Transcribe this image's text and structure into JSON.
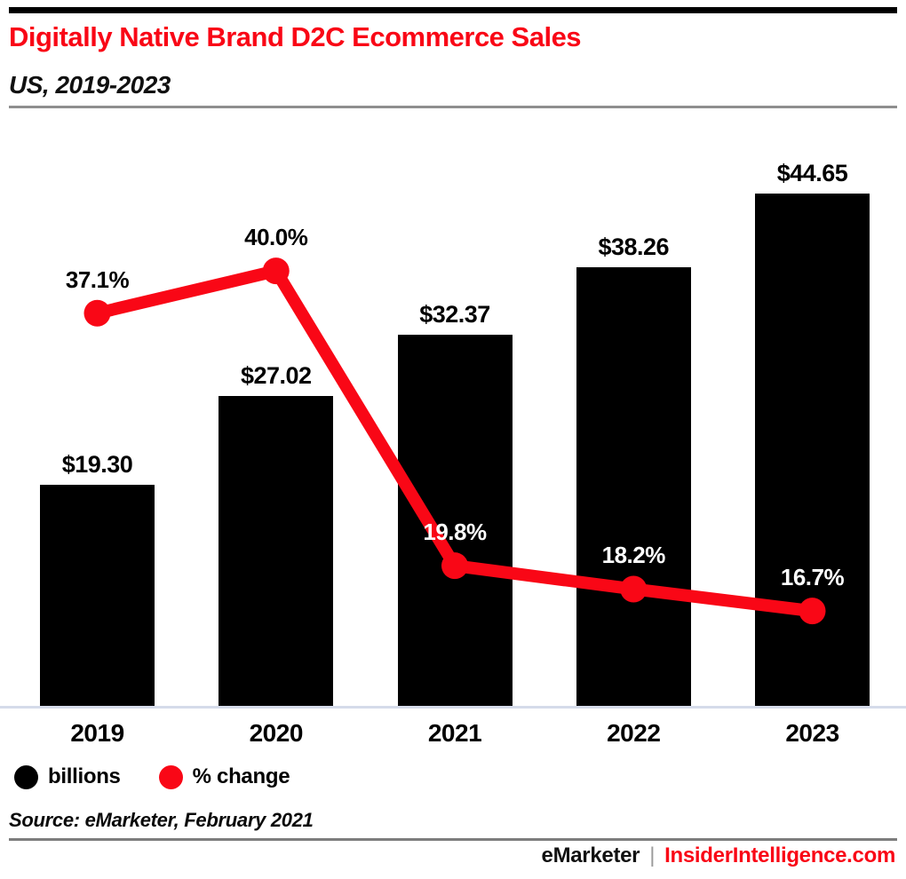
{
  "header": {
    "title": "Digitally Native Brand D2C Ecommerce Sales",
    "subtitle": "US, 2019-2023"
  },
  "chart_data": {
    "type": "bar",
    "subtype": "bar+line combo",
    "title": "Digitally Native Brand D2C Ecommerce Sales",
    "subtitle": "US, 2019-2023",
    "categories": [
      "2019",
      "2020",
      "2021",
      "2022",
      "2023"
    ],
    "series": [
      {
        "name": "billions",
        "type": "bar",
        "unit": "US$ billions",
        "values": [
          19.3,
          27.02,
          32.37,
          38.26,
          44.65
        ],
        "labels": [
          "$19.30",
          "$27.02",
          "$32.37",
          "$38.26",
          "$44.65"
        ],
        "color": "#000000"
      },
      {
        "name": "% change",
        "type": "line",
        "unit": "percent",
        "values": [
          37.1,
          40.0,
          19.8,
          18.2,
          16.7
        ],
        "labels": [
          "37.1%",
          "40.0%",
          "19.8%",
          "18.2%",
          "16.7%"
        ],
        "color": "#f90716",
        "label_colors": [
          "#000000",
          "#000000",
          "#ffffff",
          "#ffffff",
          "#ffffff"
        ]
      }
    ],
    "xlabel": "",
    "ylabel": "",
    "ylim_bar": [
      0,
      44.65
    ],
    "ylim_line": [
      10.2,
      42
    ],
    "grid": false,
    "legend_position": "bottom-left"
  },
  "legend": {
    "items": [
      {
        "label": "billions",
        "color": "#000000"
      },
      {
        "label": "% change",
        "color": "#f90716"
      }
    ]
  },
  "source": "Source: eMarketer, February 2021",
  "footer": {
    "brand": "eMarketer",
    "separator": "|",
    "site": "InsiderIntelligence.com"
  },
  "colors": {
    "accent_red": "#f90716",
    "bar_black": "#000000",
    "axis_baseline": "#d5dbea",
    "header_divider": "#8e8e8e",
    "footer_divider": "#7d7d7d"
  }
}
